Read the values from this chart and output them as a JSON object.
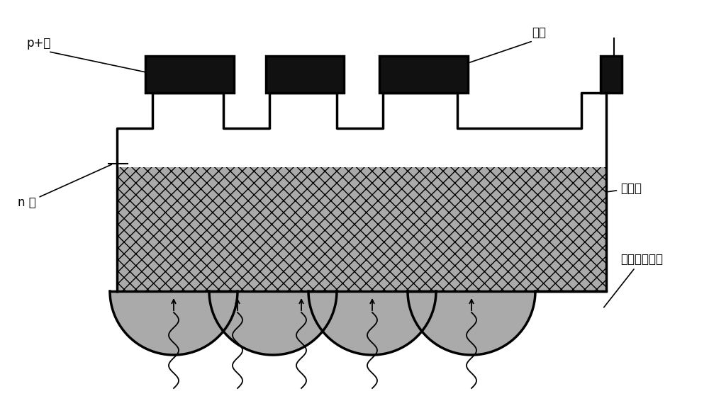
{
  "bg_color": "#ffffff",
  "silicon_fill": "#aaaaaa",
  "electrode_color": "#111111",
  "outline_color": "#000000",
  "white_fill": "#ffffff",
  "label_p_plus": "p+区",
  "label_n": "n 区",
  "label_electrode": "电极",
  "label_silicon_sub": "硅衬底",
  "label_microlens": "硅微透镜结构",
  "fig_width": 10.0,
  "fig_height": 5.66,
  "lw": 2.5
}
